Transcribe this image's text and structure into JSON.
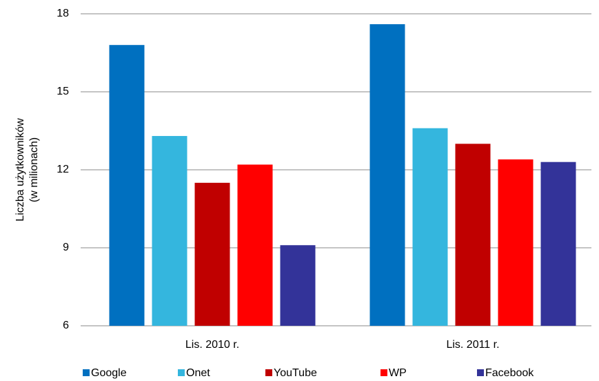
{
  "chart_data": {
    "type": "bar",
    "ylabel": [
      "Liczba użytkowników",
      "(w milionach)"
    ],
    "categories": [
      "Lis. 2010 r.",
      "Lis. 2011 r."
    ],
    "series": [
      {
        "name": "Google",
        "color": "#0070c0",
        "values": [
          16.8,
          17.6
        ]
      },
      {
        "name": "Onet",
        "color": "#34b6de",
        "values": [
          13.3,
          13.6
        ]
      },
      {
        "name": "YouTube",
        "color": "#c00000",
        "values": [
          11.5,
          13.0
        ]
      },
      {
        "name": "WP",
        "color": "#ff0000",
        "values": [
          12.2,
          12.4
        ]
      },
      {
        "name": "Facebook",
        "color": "#333399",
        "values": [
          9.1,
          12.3
        ]
      }
    ],
    "ylim": [
      6,
      18
    ],
    "yticks": [
      6,
      9,
      12,
      15,
      18
    ],
    "grid": true,
    "legend": "bottom"
  }
}
